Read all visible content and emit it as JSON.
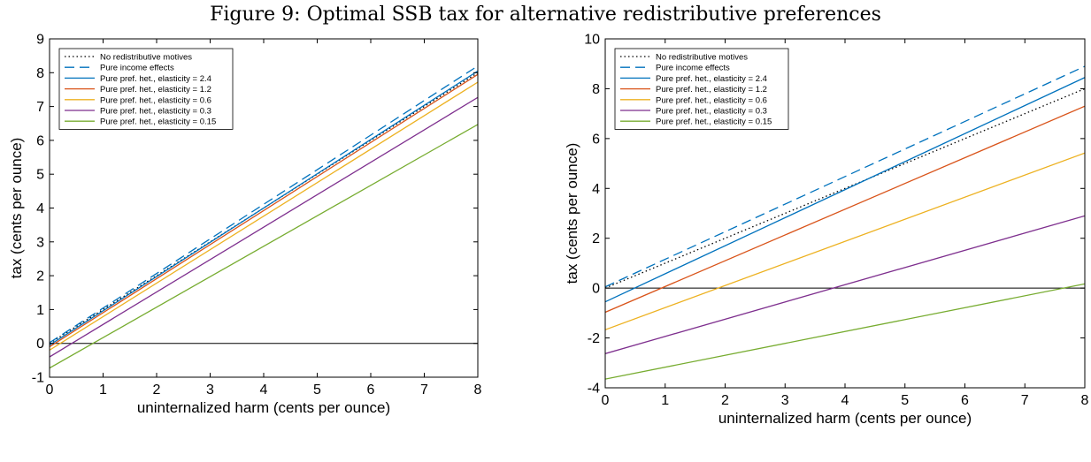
{
  "figure_title": "Figure 9: Optimal SSB tax for alternative redistributive preferences",
  "legend_entries": [
    {
      "name": "No redistributive motives",
      "color": "#000000",
      "style": "dotted"
    },
    {
      "name": "Pure income effects",
      "color": "#0072BD",
      "style": "dashed"
    },
    {
      "name": "Pure pref. het., elasticity = 2.4",
      "color": "#0072BD",
      "style": "solid"
    },
    {
      "name": "Pure pref. het., elasticity = 1.2",
      "color": "#D95319",
      "style": "solid"
    },
    {
      "name": "Pure pref. het., elasticity = 0.6",
      "color": "#EDB120",
      "style": "solid"
    },
    {
      "name": "Pure pref. het., elasticity = 0.3",
      "color": "#7E2F8E",
      "style": "solid"
    },
    {
      "name": "Pure pref. het., elasticity = 0.15",
      "color": "#77AC30",
      "style": "solid"
    }
  ],
  "chart_data": [
    {
      "type": "line",
      "xlabel": "uninternalized harm (cents per ounce)",
      "ylabel": "tax (cents per ounce)",
      "xlim": [
        0,
        8
      ],
      "ylim": [
        -1,
        9
      ],
      "xticks": [
        0,
        1,
        2,
        3,
        4,
        5,
        6,
        7,
        8
      ],
      "yticks": [
        -1,
        0,
        1,
        2,
        3,
        4,
        5,
        6,
        7,
        8,
        9
      ],
      "legend_position": "top-left",
      "grid": false,
      "reference_line_y": 0,
      "series": [
        {
          "name": "No redistributive motives",
          "x": [
            0,
            8
          ],
          "y": [
            0.0,
            8.0
          ]
        },
        {
          "name": "Pure income effects",
          "x": [
            0,
            8
          ],
          "y": [
            0.02,
            8.2
          ]
        },
        {
          "name": "Pure pref. het., elasticity = 2.4",
          "x": [
            0,
            8
          ],
          "y": [
            -0.05,
            8.05
          ]
        },
        {
          "name": "Pure pref. het., elasticity = 1.2",
          "x": [
            0,
            8
          ],
          "y": [
            -0.1,
            7.95
          ]
        },
        {
          "name": "Pure pref. het., elasticity = 0.6",
          "x": [
            0,
            8
          ],
          "y": [
            -0.2,
            7.72
          ]
        },
        {
          "name": "Pure pref. het., elasticity = 0.3",
          "x": [
            0,
            8
          ],
          "y": [
            -0.4,
            7.27
          ]
        },
        {
          "name": "Pure pref. het., elasticity = 0.15",
          "x": [
            0,
            8
          ],
          "y": [
            -0.73,
            6.47
          ]
        }
      ]
    },
    {
      "type": "line",
      "xlabel": "uninternalized harm (cents per ounce)",
      "ylabel": "tax (cents per ounce)",
      "xlim": [
        0,
        8
      ],
      "ylim": [
        -4,
        10
      ],
      "xticks": [
        0,
        1,
        2,
        3,
        4,
        5,
        6,
        7,
        8
      ],
      "yticks": [
        -4,
        -2,
        0,
        2,
        4,
        6,
        8,
        10
      ],
      "legend_position": "top-left",
      "grid": false,
      "reference_line_y": 0,
      "series": [
        {
          "name": "No redistributive motives",
          "x": [
            0,
            8
          ],
          "y": [
            0.0,
            8.0
          ]
        },
        {
          "name": "Pure income effects",
          "x": [
            0,
            8
          ],
          "y": [
            0.05,
            8.9
          ]
        },
        {
          "name": "Pure pref. het., elasticity = 2.4",
          "x": [
            0,
            8
          ],
          "y": [
            -0.55,
            8.45
          ]
        },
        {
          "name": "Pure pref. het., elasticity = 1.2",
          "x": [
            0,
            8
          ],
          "y": [
            -0.97,
            7.3
          ]
        },
        {
          "name": "Pure pref. het., elasticity = 0.6",
          "x": [
            0,
            8
          ],
          "y": [
            -1.67,
            5.42
          ]
        },
        {
          "name": "Pure pref. het., elasticity = 0.3",
          "x": [
            0,
            8
          ],
          "y": [
            -2.63,
            2.9
          ]
        },
        {
          "name": "Pure pref. het., elasticity = 0.15",
          "x": [
            0,
            8
          ],
          "y": [
            -3.65,
            0.17
          ]
        }
      ]
    }
  ]
}
